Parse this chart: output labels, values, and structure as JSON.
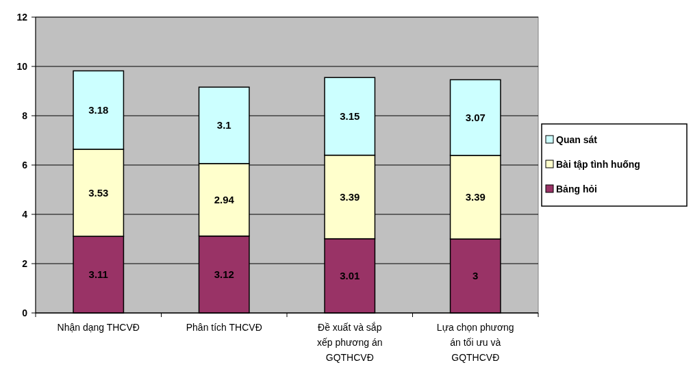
{
  "chart_data": {
    "type": "bar",
    "stacked": true,
    "categories": [
      "Nhận dạng THCVĐ",
      "Phân tích THCVĐ",
      "Đề xuất và sắp xếp phương án GQTHCVĐ",
      "Lựa chọn phương án tối ưu và GQTHCVĐ"
    ],
    "series": [
      {
        "name": "Bảng hỏi",
        "color": "#993366",
        "values": [
          3.11,
          3.12,
          3.01,
          3
        ]
      },
      {
        "name": "Bài tập tình huống",
        "color": "#ffffcc",
        "values": [
          3.53,
          2.94,
          3.39,
          3.39
        ]
      },
      {
        "name": "Quan sát",
        "color": "#ccffff",
        "values": [
          3.18,
          3.1,
          3.15,
          3.07
        ]
      }
    ],
    "ylim": [
      0,
      12
    ],
    "yticks": [
      0,
      2,
      4,
      6,
      8,
      10,
      12
    ],
    "grid": "y",
    "legend": "right",
    "data_labels": true
  }
}
